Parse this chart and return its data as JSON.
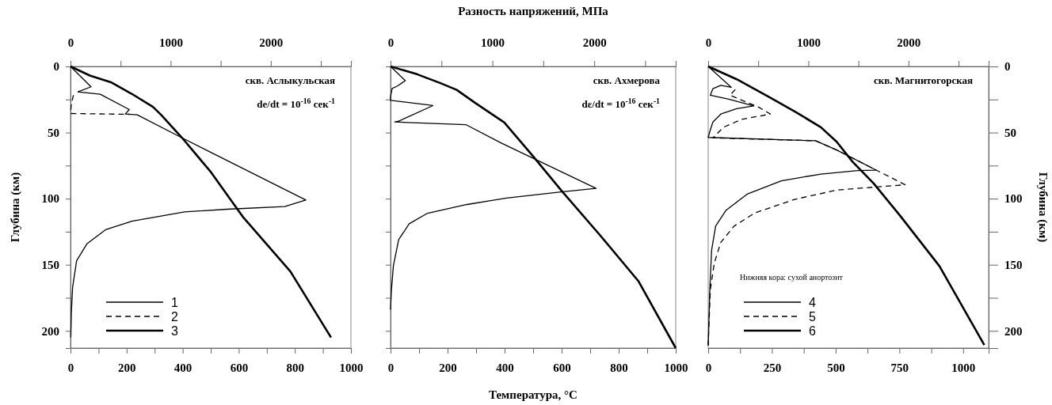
{
  "chart_data": [
    {
      "type": "line",
      "ylabel": "Глубина (км)",
      "annotations": [
        "скв. Аслыкульская",
        "de/dt = 10$^{-16}$ сек$^{-1}$"
      ],
      "legend": "bottom left",
      "xlim": [
        0,
        1000
      ],
      "ylim": [
        213,
        0
      ],
      "x2lim": [
        0,
        2800
      ],
      "xticks": [
        0,
        {
          "value": 100,
          "label": null
        },
        200,
        {
          "value": 300,
          "label": null
        },
        400,
        {
          "value": 500,
          "label": null
        },
        600,
        {
          "value": 700,
          "label": null
        },
        800,
        {
          "value": 900,
          "label": null
        },
        1000
      ],
      "x2ticks": [
        0,
        {
          "value": 500,
          "label": null
        },
        1000,
        {
          "value": 1500,
          "label": null
        },
        2000,
        {
          "value": 2500,
          "label": null
        }
      ],
      "yticks": [
        0,
        {
          "value": 25,
          "label": null
        },
        50,
        {
          "value": 75,
          "label": null
        },
        100,
        {
          "value": 125,
          "label": null
        },
        150,
        {
          "value": 175,
          "label": null
        },
        200
      ],
      "series": [
        {
          "name": "1",
          "color": "#000000",
          "axis": "x2",
          "line_style": "solid",
          "x": [
            0,
            205,
            74,
            297,
            587,
            547,
            666,
            1113,
            1429,
            2350,
            2139,
            1560,
            1139,
            613,
            350,
            166,
            61,
            21,
            8,
            3
          ],
          "values": [
            0,
            15.4,
            19.2,
            21,
            32.6,
            36,
            36.6,
            54,
            66,
            101,
            106,
            108,
            110,
            117,
            123.5,
            134,
            147,
            167,
            187,
            205
          ]
        },
        {
          "name": "2",
          "color": "#000000",
          "axis": "x2",
          "line_style": "dashed",
          "x": [
            29,
            8,
            0,
            587
          ],
          "values": [
            21.7,
            28.7,
            35.6,
            36.2
          ]
        },
        {
          "name": "3",
          "color": "#000000",
          "line_style": "solid",
          "x": [
            0,
            69,
            144,
            219,
            294,
            323,
            398,
            501,
            614,
            784,
            929
          ],
          "values": [
            0,
            6.9,
            11.9,
            20.8,
            30.6,
            36.6,
            54,
            80,
            113.6,
            155,
            205
          ]
        }
      ]
    },
    {
      "type": "line",
      "xlabel": "Температура, °C",
      "x2label": "Разность напряжений, МПа",
      "annotations": [
        "скв. Ахмерова",
        "dε/dt = 10$^{-16}$ сек$^{-1}$"
      ],
      "tick_labels": "x",
      "xlim": [
        0,
        1000
      ],
      "ylim": [
        213,
        0
      ],
      "x2lim": [
        0,
        2800
      ],
      "xticks": [
        0,
        {
          "value": 100,
          "label": null
        },
        200,
        {
          "value": 300,
          "label": null
        },
        400,
        {
          "value": 500,
          "label": null
        },
        600,
        {
          "value": 700,
          "label": null
        },
        800,
        {
          "value": 900,
          "label": null
        },
        1000
      ],
      "x2ticks": [
        0,
        {
          "value": 500,
          "label": null
        },
        1000,
        {
          "value": 1500,
          "label": null
        },
        2000,
        {
          "value": 2500,
          "label": null
        }
      ],
      "yticks": [
        0,
        {
          "value": 25,
          "label": null
        },
        50,
        {
          "value": 75,
          "label": null
        },
        100,
        {
          "value": 125,
          "label": null
        },
        150,
        {
          "value": 175,
          "label": null
        },
        200
      ],
      "series": [
        {
          "color": "#000000",
          "axis": "x2",
          "line_style": "solid",
          "x": [
            0,
            145,
            67,
            16,
            0,
            0,
            416,
            80,
            41,
            739,
            1088,
            2018,
            1656,
            1140,
            752,
            364,
            183,
            80,
            28,
            8,
            0
          ],
          "values": [
            0,
            10.8,
            14.8,
            16.7,
            22.7,
            25.6,
            29.6,
            41.4,
            42,
            44,
            58,
            92.2,
            95,
            99.5,
            104.4,
            111,
            119,
            131,
            150.7,
            170,
            184
          ]
        },
        {
          "color": "#000000",
          "line_style": "solid",
          "x": [
            0,
            93,
            177,
            232,
            297,
            399,
            500,
            602,
            732,
            870,
            1000
          ],
          "values": [
            0,
            5.9,
            12.8,
            17.7,
            27.6,
            42.4,
            68,
            94.6,
            127,
            162.6,
            213
          ]
        }
      ]
    },
    {
      "type": "line",
      "ylabel": "Глубина (км)",
      "annotations": [
        "скв. Магнитогорская"
      ],
      "legend": "bottom left",
      "legend_title": "Нижняя кора: сухой анортозит",
      "xlim": [
        0,
        1100
      ],
      "ylim": [
        213,
        0
      ],
      "x2lim": [
        0,
        2800
      ],
      "xticks": [
        0,
        {
          "value": 125,
          "label": null
        },
        250,
        {
          "value": 375,
          "label": null
        },
        500,
        {
          "value": 625,
          "label": null
        },
        750,
        {
          "value": 875,
          "label": null
        },
        1000
      ],
      "x2ticks": [
        0,
        {
          "value": 500,
          "label": null
        },
        1000,
        {
          "value": 1500,
          "label": null
        },
        2000,
        {
          "value": 2500,
          "label": null
        }
      ],
      "yticks": [
        0,
        {
          "value": 25,
          "label": null
        },
        50,
        {
          "value": 75,
          "label": null
        },
        100,
        {
          "value": 125,
          "label": null
        },
        150,
        {
          "value": 175,
          "label": null
        },
        200
      ],
      "series": [
        {
          "name": "4",
          "color": "#000000",
          "axis": "x2",
          "line_style": "solid",
          "x": [
            0,
            231,
            126,
            47,
            21,
            205,
            455,
            284,
            126,
            47,
            21,
            0,
            1072,
            1283,
            1676,
            1493,
            1125,
            730,
            389,
            179,
            74,
            34,
            16,
            0
          ],
          "values": [
            0,
            15.8,
            14.3,
            16.8,
            21.8,
            24.8,
            29.9,
            31.9,
            36,
            42,
            48,
            53.7,
            56.2,
            63.2,
            78.4,
            78.8,
            81.4,
            86.5,
            96.6,
            108.7,
            120.8,
            139,
            169,
            211
          ]
        },
        {
          "name": "5",
          "color": "#000000",
          "axis": "x2",
          "line_style": "dashed",
          "x": [
            271,
            218,
            507,
            620,
            336,
            152,
            74,
            47,
            1072,
            1283,
            1966,
            1703,
            1283,
            862,
            468,
            258,
            126,
            60,
            21,
            0
          ],
          "values": [
            17.4,
            21.8,
            30.9,
            36,
            40,
            46,
            52,
            54,
            56.2,
            63.2,
            89.5,
            91,
            93.5,
            100.6,
            110.7,
            120.8,
            133,
            149,
            169,
            211
          ]
        },
        {
          "name": "6",
          "color": "#000000",
          "line_style": "solid",
          "x": [
            0,
            112,
            236,
            339,
            442,
            504,
            566,
            649,
            752,
            907,
            1083
          ],
          "values": [
            0,
            9.7,
            22.8,
            34,
            46,
            57,
            72,
            88.5,
            112.7,
            151,
            210.7
          ]
        }
      ]
    }
  ]
}
